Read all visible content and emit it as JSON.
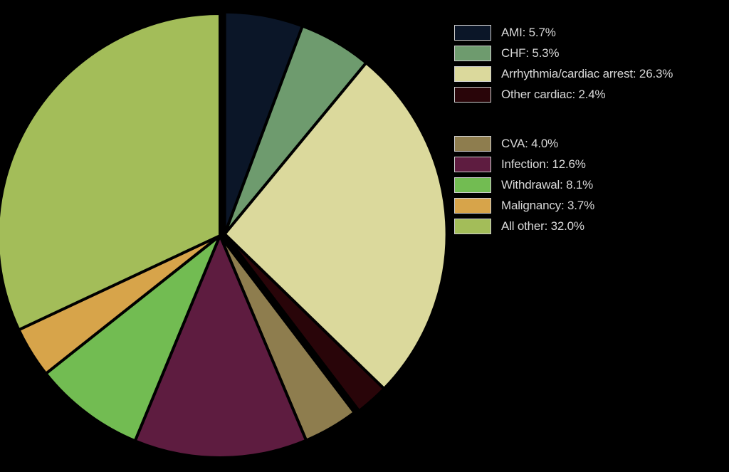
{
  "chart_data": {
    "type": "pie",
    "title": "",
    "exploded_group": "cardiac",
    "slices": [
      {
        "label": "AMI",
        "value": 5.7,
        "legend_text": "AMI: 5.7%",
        "color": "#0b1628",
        "group": "cardiac"
      },
      {
        "label": "CHF",
        "value": 5.3,
        "legend_text": "CHF: 5.3%",
        "color": "#6e9b6e",
        "group": "cardiac"
      },
      {
        "label": "Arrhythmia/cardiac arrest",
        "value": 26.3,
        "legend_text": "Arrhythmia/cardiac arrest: 26.3%",
        "color": "#dbd99c",
        "group": "cardiac"
      },
      {
        "label": "Other cardiac",
        "value": 2.4,
        "legend_text": "Other cardiac: 2.4%",
        "color": "#290509",
        "group": "cardiac"
      },
      {
        "label": "CVA",
        "value": 4.0,
        "legend_text": "CVA: 4.0%",
        "color": "#8e7d4e",
        "group": "noncardiac"
      },
      {
        "label": "Infection",
        "value": 12.6,
        "legend_text": "Infection: 12.6%",
        "color": "#5e1c40",
        "group": "noncardiac"
      },
      {
        "label": "Withdrawal",
        "value": 8.1,
        "legend_text": "Withdrawal: 8.1%",
        "color": "#72bc52",
        "group": "noncardiac"
      },
      {
        "label": "Malignancy",
        "value": 3.7,
        "legend_text": "Malignancy: 3.7%",
        "color": "#d7a44a",
        "group": "noncardiac"
      },
      {
        "label": "All other",
        "value": 32.0,
        "legend_text": "All other: 32.0%",
        "color": "#a3bd59",
        "group": "noncardiac"
      }
    ],
    "legend": {
      "placement": "right"
    }
  }
}
